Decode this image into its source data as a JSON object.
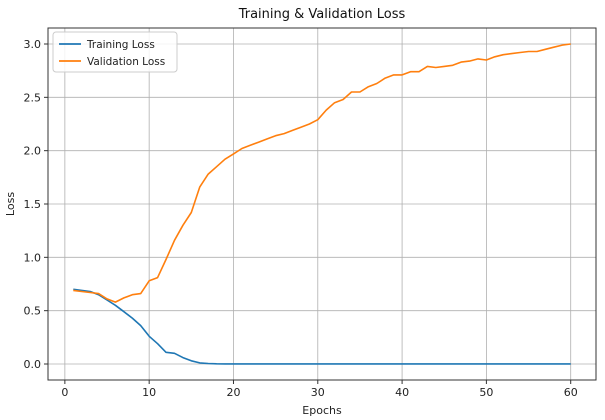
{
  "chart_data": {
    "type": "line",
    "title": "Training & Validation Loss",
    "xlabel": "Epochs",
    "ylabel": "Loss",
    "xlim": [
      -2.0,
      63.0
    ],
    "ylim": [
      -0.15,
      3.15
    ],
    "x_ticks": [
      0,
      10,
      20,
      30,
      40,
      50,
      60
    ],
    "y_ticks": [
      0.0,
      0.5,
      1.0,
      1.5,
      2.0,
      2.5,
      3.0
    ],
    "y_tick_labels": [
      "0.0",
      "0.5",
      "1.0",
      "1.5",
      "2.0",
      "2.5",
      "3.0"
    ],
    "grid": true,
    "legend_position": "top-left",
    "x": [
      1,
      2,
      3,
      4,
      5,
      6,
      7,
      8,
      9,
      10,
      11,
      12,
      13,
      14,
      15,
      16,
      17,
      18,
      19,
      20,
      21,
      22,
      23,
      24,
      25,
      26,
      27,
      28,
      29,
      30,
      31,
      32,
      33,
      34,
      35,
      36,
      37,
      38,
      39,
      40,
      41,
      42,
      43,
      44,
      45,
      46,
      47,
      48,
      49,
      50,
      51,
      52,
      53,
      54,
      55,
      56,
      57,
      58,
      59,
      60
    ],
    "series": [
      {
        "name": "Training Loss",
        "color": "#1f77b4",
        "values": [
          0.7,
          0.69,
          0.68,
          0.65,
          0.6,
          0.55,
          0.49,
          0.43,
          0.36,
          0.26,
          0.19,
          0.11,
          0.1,
          0.06,
          0.03,
          0.01,
          0.005,
          0.002,
          0.001,
          0.001,
          0.001,
          0.001,
          0.001,
          0.001,
          0.001,
          0.001,
          0.001,
          0.001,
          0.001,
          0.001,
          0.001,
          0.001,
          0.001,
          0.001,
          0.001,
          0.001,
          0.001,
          0.001,
          0.001,
          0.001,
          0.001,
          0.001,
          0.001,
          0.001,
          0.001,
          0.001,
          0.001,
          0.001,
          0.001,
          0.001,
          0.001,
          0.001,
          0.001,
          0.001,
          0.001,
          0.001,
          0.001,
          0.001,
          0.001,
          0.001
        ]
      },
      {
        "name": "Validation Loss",
        "color": "#ff7f0e",
        "values": [
          0.69,
          0.68,
          0.67,
          0.66,
          0.61,
          0.58,
          0.62,
          0.65,
          0.66,
          0.78,
          0.81,
          0.98,
          1.16,
          1.3,
          1.42,
          1.66,
          1.78,
          1.85,
          1.92,
          1.97,
          2.02,
          2.05,
          2.08,
          2.11,
          2.14,
          2.16,
          2.19,
          2.22,
          2.25,
          2.29,
          2.38,
          2.45,
          2.48,
          2.55,
          2.55,
          2.6,
          2.63,
          2.68,
          2.71,
          2.71,
          2.74,
          2.74,
          2.79,
          2.78,
          2.79,
          2.8,
          2.83,
          2.84,
          2.86,
          2.85,
          2.88,
          2.9,
          2.91,
          2.92,
          2.93,
          2.93,
          2.95,
          2.97,
          2.99,
          3.0
        ]
      }
    ]
  }
}
